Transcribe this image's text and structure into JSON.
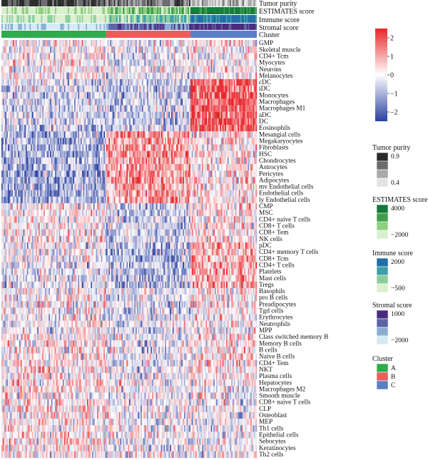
{
  "chart_data": {
    "type": "heatmap",
    "annotation_tracks": [
      "Tumor purity",
      "ESTIMATES score",
      "Immune score",
      "Stromal score",
      "Cluster"
    ],
    "cell_types": [
      "GMP",
      "Skeletal muscle",
      "CD4+ Tcm",
      "Myocytes",
      "Neurons",
      "Melanocytes",
      "cDC",
      "iDC",
      "Monocytes",
      "Macrophages",
      "Macrophages M1",
      "aDC",
      "DC",
      "Eosinophils",
      "Mesangial cells",
      "Megakaryocytes",
      "Fibroblasts",
      "HSC",
      "Chondrocytes",
      "Astrocytes",
      "Pericytes",
      "Adipocytes",
      "mv Endothelial cells",
      "Endothelial cells",
      "ly Endothelial cells",
      "CMP",
      "MSC",
      "CD4+ naive T cells",
      "CD8+ T cells",
      "CD8+ Tem",
      "NK cells",
      "pDC",
      "CD4+ memory T cells",
      "CD8+ Tcm",
      "CD4+ T cells",
      "Platelets",
      "Mast cells",
      "Tregs",
      "Basophils",
      "pro B cells",
      "Preadipocytes",
      "Tgd cells",
      "Erythrocytes",
      "Neutrophils",
      "MPP",
      "Class switched memory B",
      "Memory B cells",
      "B cells",
      "Naive B cells",
      "CD4+ Tem",
      "NKT",
      "Plasma cells",
      "Hepatocytes",
      "Macrophages M2",
      "Smooth muscle",
      "CD8+ naive T cells",
      "CLP",
      "Osteoblast",
      "MEP",
      "Th1 cells",
      "Epithelial cells",
      "Sebocytes",
      "Keratinocytes",
      "Th2 cells"
    ],
    "clusters": [
      {
        "name": "A",
        "samples": 82,
        "color": "#2eab4a"
      },
      {
        "name": "B",
        "samples": 66,
        "color": "#f15a5a"
      },
      {
        "name": "C",
        "samples": 52,
        "color": "#5b7fc6"
      }
    ],
    "color_scale": {
      "ticks": [
        2,
        1,
        0,
        -1,
        -2
      ],
      "tick_labels": [
        "2",
        "1",
        "0",
        "−1",
        "−2"
      ],
      "min": -2.5,
      "max": 2.5,
      "low_color": "#2a3fa0",
      "mid_color": "#ffffff",
      "high_color": "#e8262b"
    },
    "legends": [
      {
        "title": "Tumor purity",
        "labels": [
          "0.9",
          "0.4"
        ],
        "colors": [
          "#2b2b2b",
          "#6b6b6b",
          "#a9a9a9",
          "#e3e3e3"
        ]
      },
      {
        "title": "ESTIMATES score",
        "labels": [
          "4000",
          "−2000"
        ],
        "colors": [
          "#137a3a",
          "#3e9e4c",
          "#8fcf7e",
          "#d9efcf"
        ]
      },
      {
        "title": "Immune score",
        "labels": [
          "2000",
          "−500"
        ],
        "colors": [
          "#1f6ea8",
          "#3f9fa6",
          "#8ccd9e",
          "#dcefd0"
        ]
      },
      {
        "title": "Stromal score",
        "labels": [
          "1000",
          "−2000"
        ],
        "colors": [
          "#4b2a7e",
          "#5d63a6",
          "#8aaed2",
          "#d6eaf5"
        ]
      },
      {
        "title": "Cluster",
        "labels": [
          "A",
          "B",
          "C"
        ],
        "colors": [
          "#2eab4a",
          "#f15a5a",
          "#5b7fc6"
        ]
      }
    ]
  }
}
